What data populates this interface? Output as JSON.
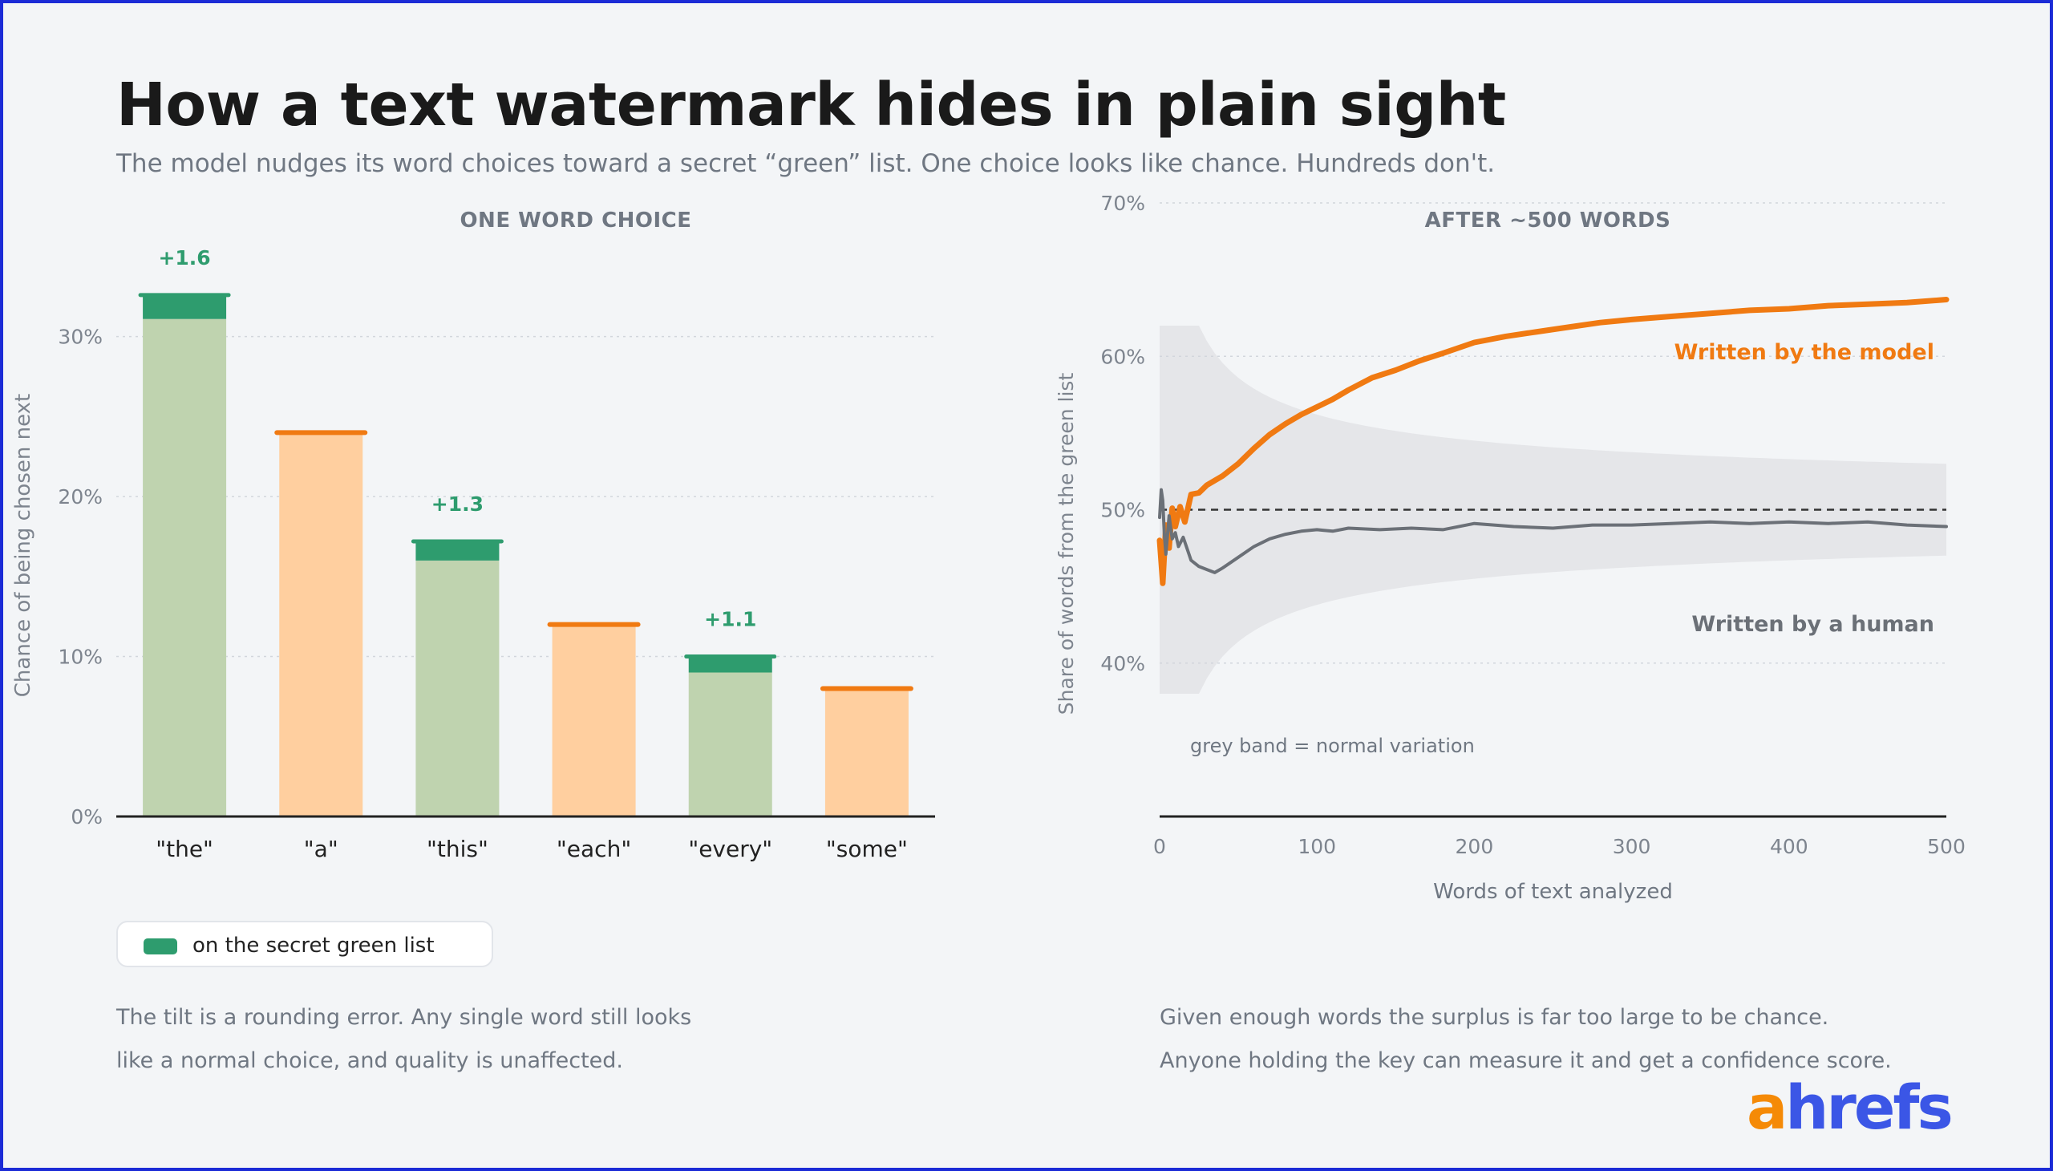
{
  "header": {
    "title": "How a text watermark hides in plain sight",
    "subtitle": "The model nudges its word choices toward a secret “green” list. One choice looks like chance. Hundreds don't."
  },
  "colors": {
    "green": "#2e9c6e",
    "green_light": "#bfd3af",
    "orange": "#f07a12",
    "orange_light": "#ffcf9f",
    "grey_line": "#6b7077",
    "band": "#e5e6e9"
  },
  "chart_data": [
    {
      "type": "bar",
      "title": "ONE WORD CHOICE",
      "ylabel": "Chance of being chosen next",
      "categories": [
        "\"the\"",
        "\"a\"",
        "\"this\"",
        "\"each\"",
        "\"every\"",
        "\"some\""
      ],
      "values": [
        32.7,
        24.0,
        17.3,
        12.0,
        10.1,
        8.0
      ],
      "green_list": [
        true,
        false,
        true,
        false,
        true,
        false
      ],
      "boost_labels": [
        "+1.6",
        "",
        "+1.3",
        "",
        "+1.1",
        ""
      ],
      "boost_values": [
        1.6,
        0,
        1.3,
        0,
        1.1,
        0
      ],
      "yticks": [
        0,
        10,
        20,
        30
      ],
      "ytick_labels": [
        "0%",
        "10%",
        "20%",
        "30%"
      ],
      "ylim": [
        0,
        36
      ],
      "grid": true
    },
    {
      "type": "line",
      "title": "AFTER ~500 WORDS",
      "xlabel": "Words of text analyzed",
      "ylabel": "Share of words from the green list",
      "xlim": [
        0,
        500
      ],
      "ylim": [
        30,
        70
      ],
      "xticks": [
        0,
        100,
        200,
        300,
        400,
        500
      ],
      "xtick_labels": [
        "0",
        "100",
        "200",
        "300",
        "400",
        "500"
      ],
      "yticks": [
        40,
        50,
        60,
        70
      ],
      "ytick_labels": [
        "40%",
        "50%",
        "60%",
        "70%"
      ],
      "reference_line": 50,
      "band_label": "grey band = normal variation",
      "series": [
        {
          "name": "Written by the model",
          "x": [
            0,
            2,
            4,
            6,
            8,
            10,
            13,
            16,
            20,
            25,
            30,
            40,
            50,
            60,
            70,
            80,
            90,
            100,
            110,
            120,
            135,
            150,
            165,
            180,
            200,
            220,
            240,
            260,
            280,
            300,
            325,
            350,
            375,
            400,
            425,
            450,
            475,
            500
          ],
          "y": [
            48.0,
            45.2,
            49.0,
            47.5,
            50.1,
            48.9,
            50.2,
            49.2,
            51.0,
            51.1,
            51.6,
            52.2,
            53.0,
            54.0,
            54.9,
            55.6,
            56.2,
            56.7,
            57.2,
            57.8,
            58.6,
            59.1,
            59.7,
            60.2,
            60.9,
            61.3,
            61.6,
            61.9,
            62.2,
            62.4,
            62.6,
            62.8,
            63.0,
            63.1,
            63.3,
            63.4,
            63.5,
            63.7
          ]
        },
        {
          "name": "Written by a human",
          "x": [
            0,
            1,
            2,
            3,
            4,
            6,
            8,
            10,
            12,
            15,
            18,
            20,
            25,
            30,
            35,
            40,
            50,
            60,
            70,
            80,
            90,
            100,
            110,
            120,
            140,
            160,
            180,
            200,
            225,
            250,
            275,
            300,
            325,
            350,
            375,
            400,
            425,
            450,
            475,
            500
          ],
          "y": [
            49.5,
            51.3,
            50.6,
            48.4,
            47.1,
            49.6,
            48.1,
            48.5,
            47.6,
            48.2,
            47.3,
            46.7,
            46.3,
            46.1,
            45.9,
            46.2,
            46.9,
            47.6,
            48.1,
            48.4,
            48.6,
            48.7,
            48.6,
            48.8,
            48.7,
            48.8,
            48.7,
            49.1,
            48.9,
            48.8,
            49.0,
            49.0,
            49.1,
            49.2,
            49.1,
            49.2,
            49.1,
            49.2,
            49.0,
            48.9
          ]
        }
      ]
    }
  ],
  "legend": {
    "label": "on the secret green list"
  },
  "notes": {
    "left_line1": "The tilt is a rounding error. Any single word still looks",
    "left_line2": "like a normal choice, and quality is unaffected.",
    "right_line1": "Given enough words the surplus is far too large to be chance.",
    "right_line2": "Anyone holding the key can measure it and get a confidence score."
  },
  "brand": {
    "logo_first": "a",
    "logo_rest": "hrefs"
  }
}
